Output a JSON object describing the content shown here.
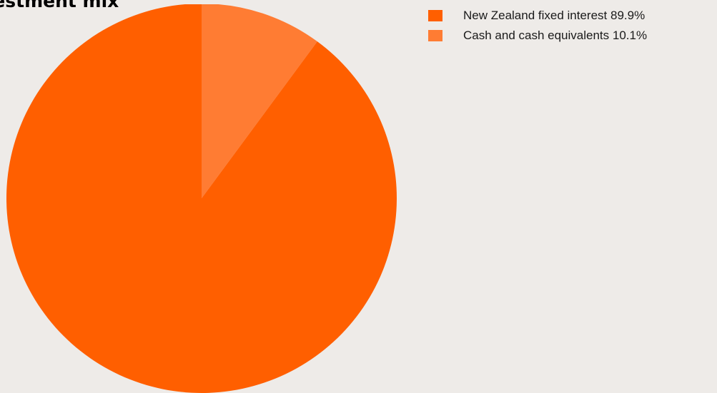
{
  "chart_data": {
    "type": "pie",
    "title": "vestment mix",
    "slices": [
      {
        "label": "New Zealand fixed interest",
        "value": 89.9,
        "value_text": "89.9%",
        "color": "#ff5f00"
      },
      {
        "label": "Cash and cash equivalents",
        "value": 10.1,
        "value_text": "10.1%",
        "color": "#ff7c33"
      }
    ],
    "legend_position": "top-right",
    "start_angle": "12 o'clock",
    "direction": "clockwise"
  }
}
